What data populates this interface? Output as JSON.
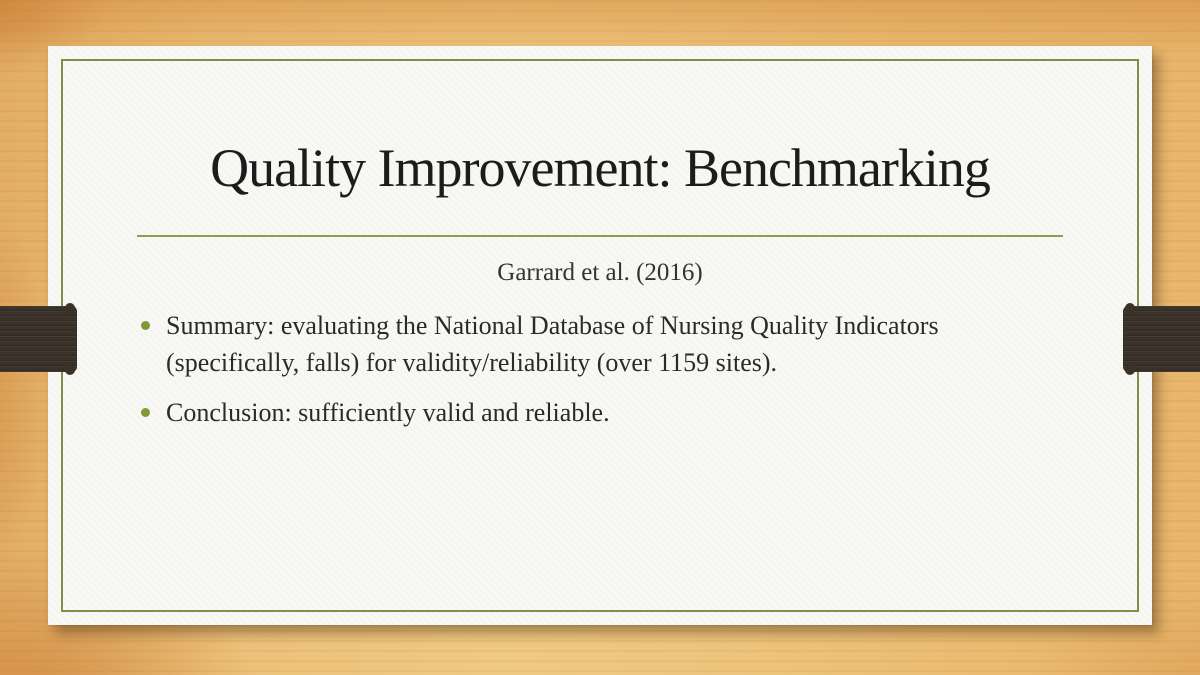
{
  "slide": {
    "title": "Quality Improvement: Benchmarking",
    "subtitle": "Garrard et al. (2016)",
    "bullets": [
      {
        "lines": [
          "Summary: evaluating the National Database of Nursing Quality Indicators",
          "(specifically, falls) for validity/reliability (over 1159 sites)."
        ]
      },
      {
        "lines": [
          "Conclusion: sufficiently valid and reliable."
        ]
      }
    ]
  },
  "colors": {
    "accent_olive_border": "#7e8f48",
    "accent_olive_rule": "#8a9e4b",
    "bullet_green": "#7f9a35",
    "ribbon_brown": "#3a3128",
    "wood_light": "#f0c981",
    "wood_dark": "#d98f47",
    "card_background": "#f8f8f5",
    "title_text": "#1c1c1c",
    "body_text": "#2a2a28"
  }
}
